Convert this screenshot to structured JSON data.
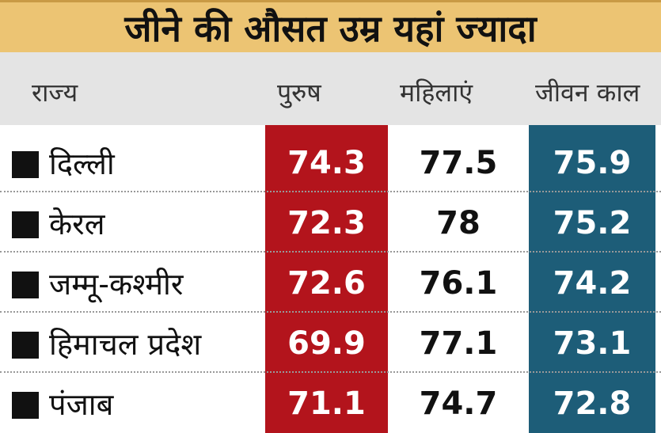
{
  "header": {
    "title": "जीने की औसत उम्र यहां ज्यादा"
  },
  "table": {
    "columns": [
      "राज्य",
      "पुरुष",
      "महिलाएं",
      "जीवन काल"
    ],
    "rows": [
      [
        "दिल्ली",
        74.3,
        77.5,
        75.9
      ],
      [
        "केरल",
        72.3,
        78,
        75.2
      ],
      [
        "जम्मू-कश्मीर",
        72.6,
        76.1,
        74.2
      ],
      [
        "हिमाचल प्रदेश",
        69.9,
        77.1,
        73.1
      ],
      [
        "पंजाब",
        71.1,
        74.7,
        72.8
      ]
    ]
  }
}
